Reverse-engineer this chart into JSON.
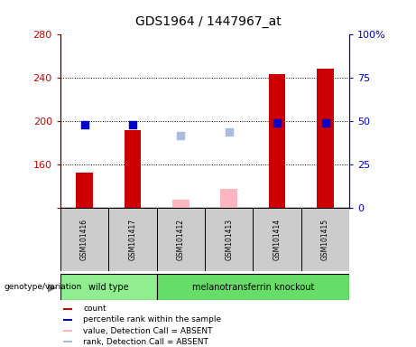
{
  "title": "GDS1964 / 1447967_at",
  "samples": [
    "GSM101416",
    "GSM101417",
    "GSM101412",
    "GSM101413",
    "GSM101414",
    "GSM101415"
  ],
  "group_colors": {
    "wild type": "#90EE90",
    "melanotransferrin knockout": "#66DD66"
  },
  "bar_bottom": 120,
  "ylim_left": [
    120,
    280
  ],
  "ylim_right": [
    0,
    100
  ],
  "yticks_left": [
    120,
    160,
    200,
    240,
    280
  ],
  "yticks_right": [
    0,
    25,
    50,
    75,
    100
  ],
  "count_values": [
    153,
    192,
    null,
    null,
    244,
    249
  ],
  "rank_values": [
    48,
    48,
    null,
    null,
    49,
    49
  ],
  "absent_value_values": [
    null,
    null,
    128,
    138,
    null,
    null
  ],
  "absent_rank_values": [
    null,
    null,
    42,
    44,
    null,
    null
  ],
  "count_color": "#CC0000",
  "rank_color": "#0000CC",
  "absent_value_color": "#FFB6C1",
  "absent_rank_color": "#AABBDD",
  "bar_width": 0.35,
  "marker_size": 40,
  "sample_box_color": "#CCCCCC",
  "plot_bg": "white",
  "fig_bg": "white"
}
